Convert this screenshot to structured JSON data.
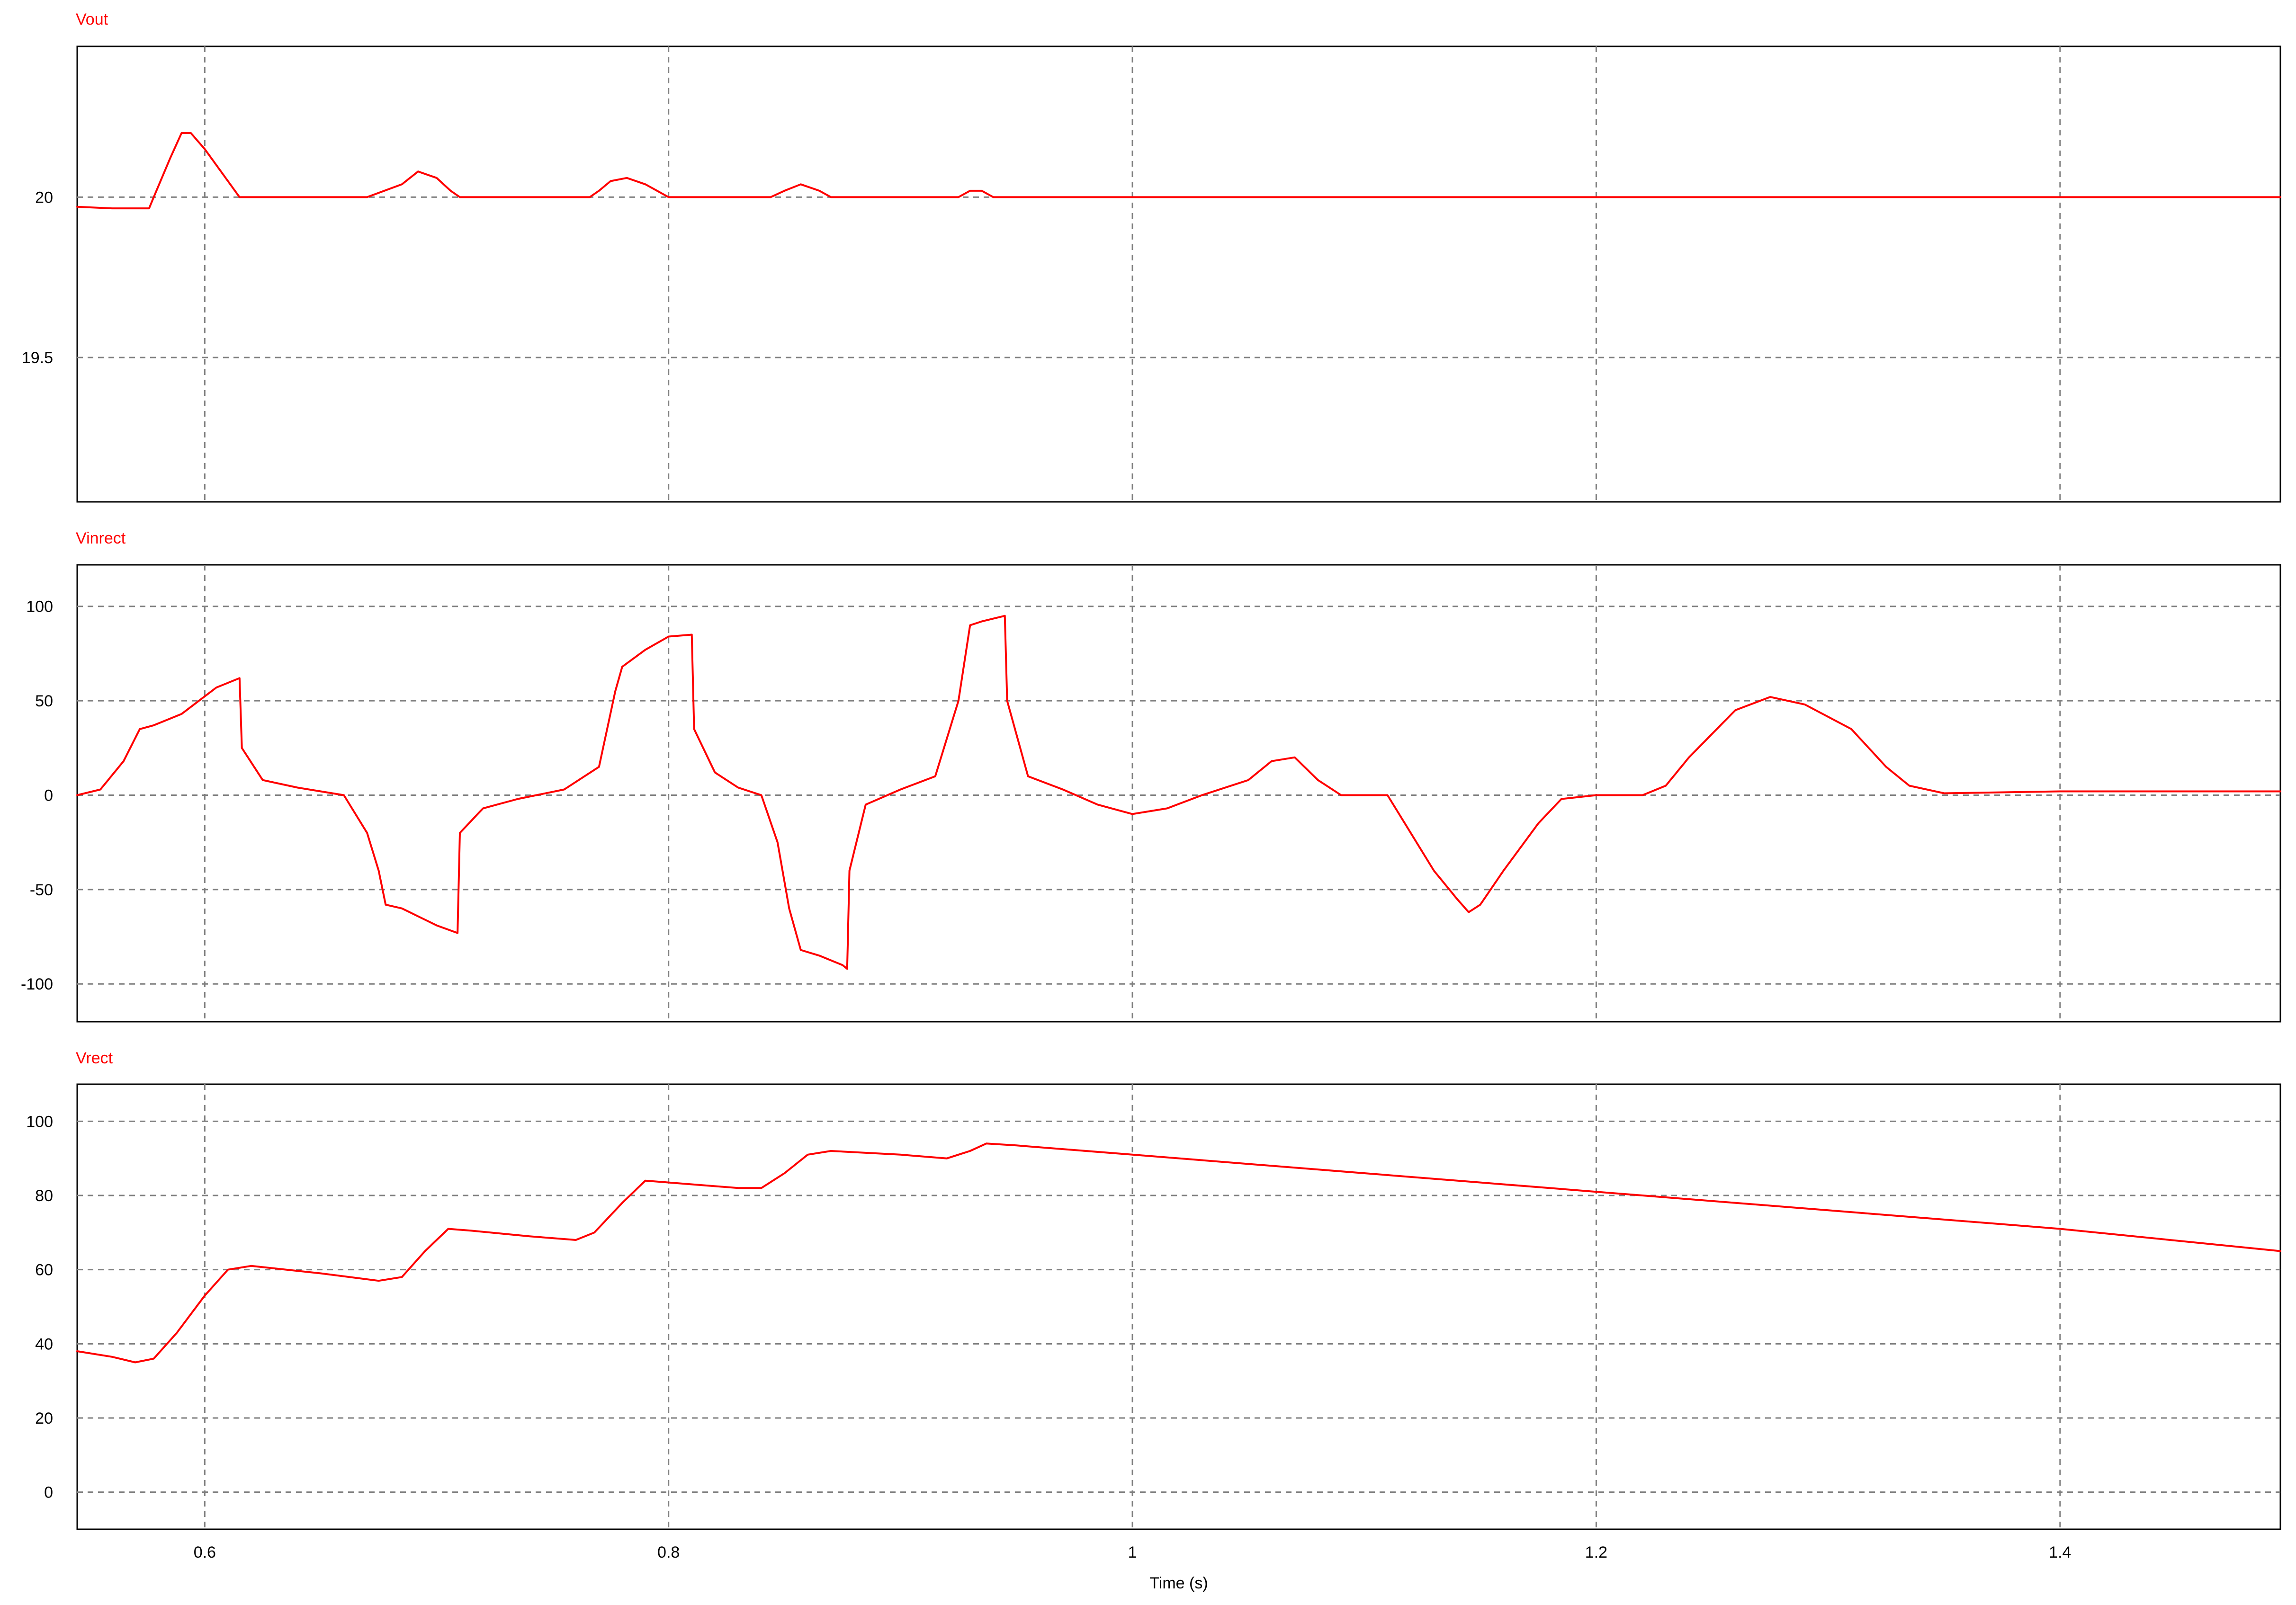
{
  "chart_data": [
    {
      "type": "line",
      "title": "Vout",
      "xlim": [
        0.545,
        1.495
      ],
      "ylim": [
        19.05,
        20.47
      ],
      "yticks": [
        20,
        19.5
      ],
      "ytick_labels": [
        "20",
        "19.5"
      ],
      "xticks": [
        0.6,
        0.8,
        1,
        1.2,
        1.4
      ],
      "grid": true,
      "color": "#ff0000",
      "series": [
        {
          "points": [
            [
              0.545,
              19.97
            ],
            [
              0.56,
              19.965
            ],
            [
              0.576,
              19.965
            ],
            [
              0.578,
              20.0
            ],
            [
              0.585,
              20.12
            ],
            [
              0.59,
              20.2
            ],
            [
              0.594,
              20.2
            ],
            [
              0.6,
              20.15
            ],
            [
              0.61,
              20.05
            ],
            [
              0.615,
              20.0
            ],
            [
              0.67,
              20.0
            ],
            [
              0.685,
              20.04
            ],
            [
              0.692,
              20.08
            ],
            [
              0.7,
              20.06
            ],
            [
              0.706,
              20.02
            ],
            [
              0.71,
              20.0
            ],
            [
              0.766,
              20.0
            ],
            [
              0.77,
              20.02
            ],
            [
              0.775,
              20.05
            ],
            [
              0.782,
              20.06
            ],
            [
              0.79,
              20.04
            ],
            [
              0.8,
              20.0
            ],
            [
              0.844,
              20.0
            ],
            [
              0.85,
              20.02
            ],
            [
              0.857,
              20.04
            ],
            [
              0.865,
              20.02
            ],
            [
              0.87,
              20.0
            ],
            [
              0.925,
              20.0
            ],
            [
              0.93,
              20.02
            ],
            [
              0.935,
              20.02
            ],
            [
              0.94,
              20.0
            ],
            [
              1.495,
              20.0
            ]
          ]
        }
      ]
    },
    {
      "type": "line",
      "title": "Vinrect",
      "xlim": [
        0.545,
        1.495
      ],
      "ylim": [
        -120,
        122
      ],
      "yticks": [
        100,
        50,
        0,
        -50,
        -100
      ],
      "ytick_labels": [
        "100",
        "50",
        "0",
        "-50",
        "-100"
      ],
      "xticks": [
        0.6,
        0.8,
        1,
        1.2,
        1.4
      ],
      "grid": true,
      "color": "#ff0000",
      "series": [
        {
          "points": [
            [
              0.545,
              0
            ],
            [
              0.555,
              3
            ],
            [
              0.565,
              18
            ],
            [
              0.572,
              35
            ],
            [
              0.578,
              37
            ],
            [
              0.59,
              43
            ],
            [
              0.605,
              57
            ],
            [
              0.615,
              62
            ],
            [
              0.616,
              25
            ],
            [
              0.625,
              8
            ],
            [
              0.64,
              4
            ],
            [
              0.65,
              2
            ],
            [
              0.66,
              0
            ],
            [
              0.67,
              -20
            ],
            [
              0.675,
              -40
            ],
            [
              0.678,
              -58
            ],
            [
              0.685,
              -60
            ],
            [
              0.7,
              -69
            ],
            [
              0.709,
              -73
            ],
            [
              0.71,
              -20
            ],
            [
              0.72,
              -7
            ],
            [
              0.735,
              -2
            ],
            [
              0.755,
              3
            ],
            [
              0.77,
              15
            ],
            [
              0.777,
              55
            ],
            [
              0.78,
              68
            ],
            [
              0.79,
              77
            ],
            [
              0.8,
              84
            ],
            [
              0.81,
              85
            ],
            [
              0.811,
              35
            ],
            [
              0.82,
              12
            ],
            [
              0.83,
              4
            ],
            [
              0.84,
              0
            ],
            [
              0.847,
              -25
            ],
            [
              0.852,
              -60
            ],
            [
              0.857,
              -82
            ],
            [
              0.865,
              -85
            ],
            [
              0.875,
              -90
            ],
            [
              0.877,
              -92
            ],
            [
              0.878,
              -40
            ],
            [
              0.885,
              -5
            ],
            [
              0.9,
              3
            ],
            [
              0.915,
              10
            ],
            [
              0.925,
              50
            ],
            [
              0.93,
              90
            ],
            [
              0.935,
              92
            ],
            [
              0.945,
              95
            ],
            [
              0.946,
              50
            ],
            [
              0.955,
              10
            ],
            [
              0.97,
              3
            ],
            [
              0.985,
              -5
            ],
            [
              1.0,
              -10
            ],
            [
              1.015,
              -7
            ],
            [
              1.03,
              0
            ],
            [
              1.05,
              8
            ],
            [
              1.06,
              18
            ],
            [
              1.07,
              20
            ],
            [
              1.08,
              8
            ],
            [
              1.09,
              0
            ],
            [
              1.11,
              0
            ],
            [
              1.12,
              -20
            ],
            [
              1.13,
              -40
            ],
            [
              1.14,
              -55
            ],
            [
              1.145,
              -62
            ],
            [
              1.15,
              -58
            ],
            [
              1.16,
              -40
            ],
            [
              1.175,
              -15
            ],
            [
              1.185,
              -2
            ],
            [
              1.2,
              0
            ],
            [
              1.22,
              0
            ],
            [
              1.23,
              5
            ],
            [
              1.24,
              20
            ],
            [
              1.26,
              45
            ],
            [
              1.275,
              52
            ],
            [
              1.29,
              48
            ],
            [
              1.31,
              35
            ],
            [
              1.325,
              15
            ],
            [
              1.335,
              5
            ],
            [
              1.35,
              1
            ],
            [
              1.4,
              2
            ],
            [
              1.495,
              2
            ]
          ]
        }
      ]
    },
    {
      "type": "line",
      "title": "Vrect",
      "xlabel": "Time (s)",
      "xlim": [
        0.545,
        1.495
      ],
      "ylim": [
        -10,
        110
      ],
      "yticks": [
        100,
        80,
        60,
        40,
        20,
        0
      ],
      "ytick_labels": [
        "100",
        "80",
        "60",
        "40",
        "20",
        "0"
      ],
      "xticks": [
        0.6,
        0.8,
        1,
        1.2,
        1.4
      ],
      "xtick_labels": [
        "0.6",
        "0.8",
        "1",
        "1.2",
        "1.4"
      ],
      "grid": true,
      "color": "#ff0000",
      "series": [
        {
          "points": [
            [
              0.545,
              38
            ],
            [
              0.56,
              36.5
            ],
            [
              0.57,
              35
            ],
            [
              0.578,
              36
            ],
            [
              0.588,
              43
            ],
            [
              0.6,
              53
            ],
            [
              0.61,
              60
            ],
            [
              0.62,
              61
            ],
            [
              0.65,
              59
            ],
            [
              0.675,
              57
            ],
            [
              0.685,
              58
            ],
            [
              0.695,
              65
            ],
            [
              0.705,
              71
            ],
            [
              0.715,
              70.5
            ],
            [
              0.74,
              69
            ],
            [
              0.76,
              68
            ],
            [
              0.768,
              70
            ],
            [
              0.78,
              78
            ],
            [
              0.79,
              84
            ],
            [
              0.8,
              83.5
            ],
            [
              0.83,
              82
            ],
            [
              0.84,
              82
            ],
            [
              0.85,
              86
            ],
            [
              0.86,
              91
            ],
            [
              0.87,
              92
            ],
            [
              0.9,
              91
            ],
            [
              0.92,
              90
            ],
            [
              0.93,
              92
            ],
            [
              0.937,
              94
            ],
            [
              0.95,
              93.5
            ],
            [
              1.0,
              91
            ],
            [
              1.1,
              86
            ],
            [
              1.2,
              81
            ],
            [
              1.3,
              76
            ],
            [
              1.4,
              71
            ],
            [
              1.495,
              65
            ]
          ]
        }
      ]
    }
  ]
}
